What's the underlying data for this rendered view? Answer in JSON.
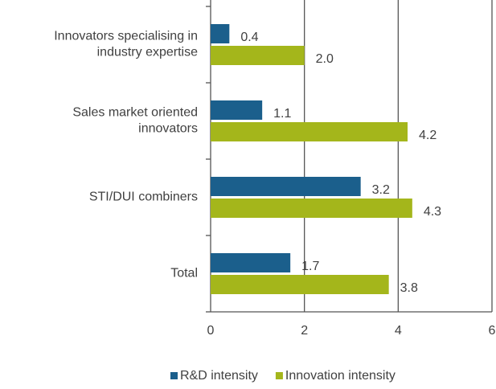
{
  "chart_data": {
    "type": "hbar",
    "categories": [
      "Innovators specialising in industry expertise",
      "Sales market oriented innovators",
      "STI/DUI combiners",
      "Total"
    ],
    "series": [
      {
        "name": "R&D intensity",
        "color": "#1b5f8c",
        "values": [
          0.4,
          1.1,
          3.2,
          1.7
        ],
        "value_labels": [
          "0.4",
          "1.1",
          "3.2",
          "1.7"
        ]
      },
      {
        "name": "Innovation intensity",
        "color": "#a4b61b",
        "values": [
          2.0,
          4.2,
          4.3,
          3.8
        ],
        "value_labels": [
          "2.0",
          "4.2",
          "4.3",
          "3.8"
        ]
      }
    ],
    "xlim": [
      0,
      6
    ],
    "xticks": [
      0,
      2,
      4,
      6
    ],
    "grid": true,
    "legend": "bottom"
  }
}
